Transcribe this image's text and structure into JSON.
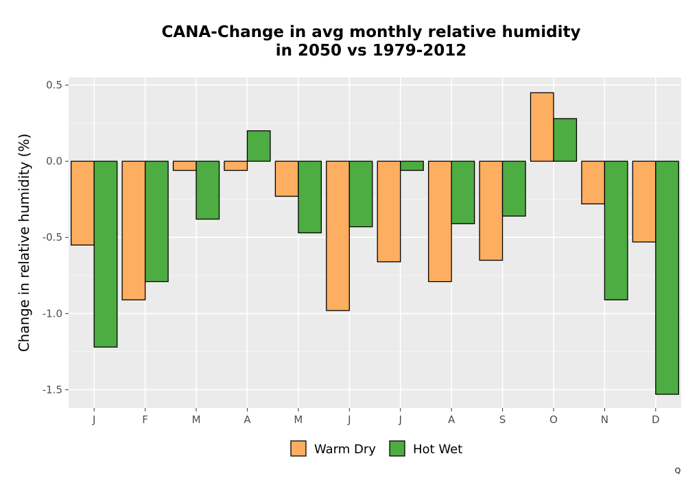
{
  "chart_data": {
    "type": "bar",
    "title_lines": [
      "CANA-Change in avg monthly relative humidity",
      "in 2050 vs 1979-2012"
    ],
    "xlabel": "",
    "ylabel": "Change in relative humidity (%)",
    "categories": [
      "J",
      "F",
      "M",
      "A",
      "M",
      "J",
      "J",
      "A",
      "S",
      "O",
      "N",
      "D"
    ],
    "series": [
      {
        "name": "Warm Dry",
        "color": "#FDAE61",
        "values": [
          -0.55,
          -0.91,
          -0.06,
          -0.06,
          -0.23,
          -0.98,
          -0.66,
          -0.79,
          -0.65,
          0.45,
          -0.28,
          -0.53
        ]
      },
      {
        "name": "Hot Wet",
        "color": "#4DAC42",
        "values": [
          -1.22,
          -0.79,
          -0.38,
          0.2,
          -0.47,
          -0.43,
          -0.06,
          -0.41,
          -0.36,
          0.28,
          -0.91,
          -1.53
        ]
      }
    ],
    "ylim": [
      -1.62,
      0.55
    ],
    "yticks": [
      0.5,
      0.0,
      -0.5,
      -1.0,
      -1.5
    ],
    "ytick_labels": [
      "0.5",
      "0.0",
      "-0.5",
      "-1.0",
      "-1.5"
    ],
    "grid": true,
    "legend": "bottom"
  },
  "corner_mark": "Q"
}
